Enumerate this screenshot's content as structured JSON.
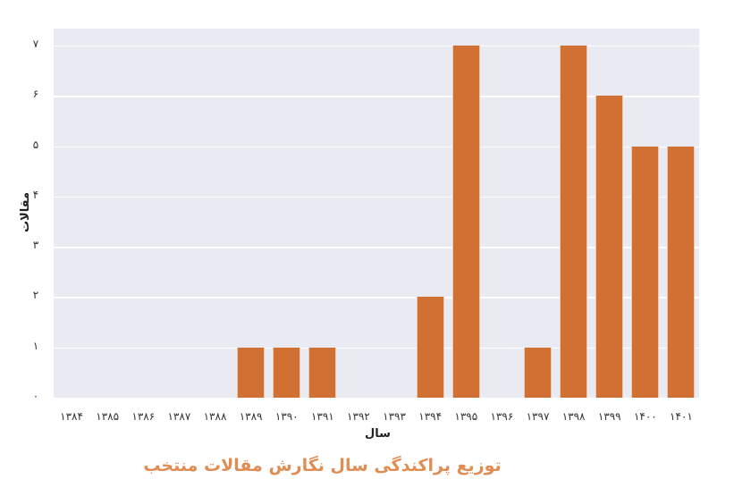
{
  "chart_data": {
    "type": "bar",
    "title": "توزیع پراکندگی سال نگارش مقالات منتخب",
    "xlabel": "سال",
    "ylabel": "مقالات",
    "categories": [
      "۱۳۸۴",
      "۱۳۸۵",
      "۱۳۸۶",
      "۱۳۸۷",
      "۱۳۸۸",
      "۱۳۸۹",
      "۱۳۹۰",
      "۱۳۹۱",
      "۱۳۹۲",
      "۱۳۹۳",
      "۱۳۹۴",
      "۱۳۹۵",
      "۱۳۹۶",
      "۱۳۹۷",
      "۱۳۹۸",
      "۱۳۹۹",
      "۱۴۰۰",
      "۱۴۰۱"
    ],
    "years": [
      1384,
      1385,
      1386,
      1387,
      1388,
      1389,
      1390,
      1391,
      1392,
      1393,
      1394,
      1395,
      1396,
      1397,
      1398,
      1399,
      1400,
      1401
    ],
    "values": [
      0,
      0,
      0,
      0,
      0,
      1,
      1,
      1,
      0,
      0,
      2,
      7,
      0,
      1,
      7,
      6,
      5,
      5
    ],
    "yticks": [
      "۰",
      "۱",
      "۲",
      "۳",
      "۴",
      "۵",
      "۶",
      "۷"
    ],
    "ylim": [
      0,
      7.35
    ],
    "grid": true,
    "legend": null,
    "bar_color": "#d07033",
    "title_color": "#e08d54",
    "background": "#eaeaf2"
  }
}
